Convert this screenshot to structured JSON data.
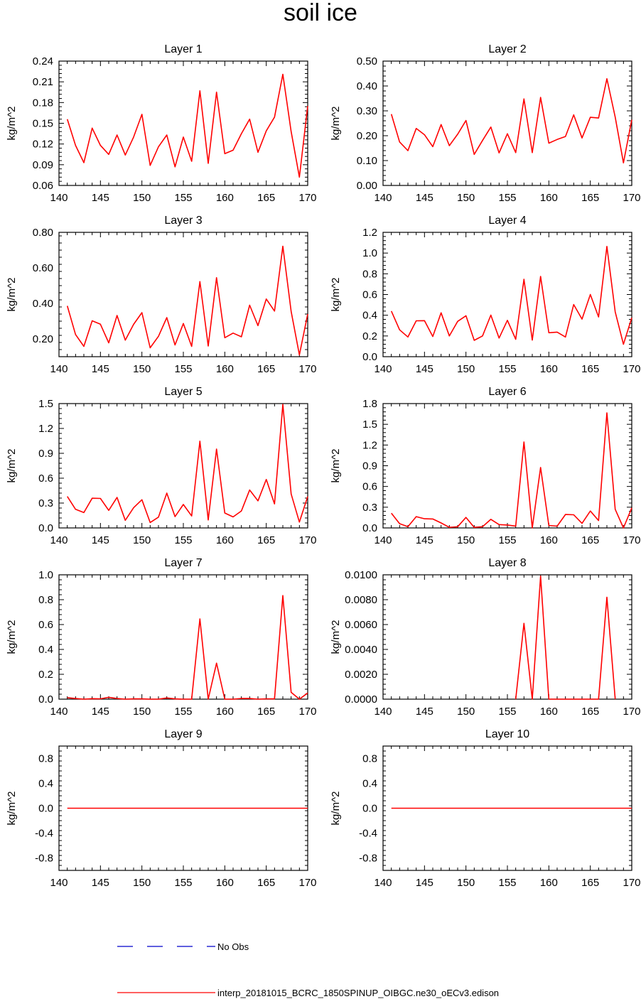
{
  "title": "soil ice",
  "legend": {
    "entries": [
      {
        "label": "No Obs",
        "color": "#0000cc",
        "style": "dashed"
      },
      {
        "label": "interp_20181015_BCRC_1850SPINUP_OIBGC.ne30_oECv3.edison",
        "color": "#ff0000",
        "style": "solid"
      }
    ]
  },
  "chart_data": [
    {
      "type": "line",
      "title": "Layer 1",
      "ylabel": "kg/m^2",
      "xlim": [
        140,
        170
      ],
      "ylim": [
        0.06,
        0.24
      ],
      "xticks": [
        140,
        145,
        150,
        155,
        160,
        165,
        170
      ],
      "yticks": [
        0.06,
        0.09,
        0.12,
        0.15,
        0.18,
        0.21,
        0.24
      ],
      "ytick_labels": [
        "0.06",
        "0.09",
        "0.12",
        "0.15",
        "0.18",
        "0.21",
        "0.24"
      ],
      "series": [
        {
          "color": "#ff0000",
          "x": [
            141,
            142,
            143,
            144,
            145,
            146,
            147,
            148,
            149,
            150,
            151,
            152,
            153,
            154,
            155,
            156,
            157,
            158,
            159,
            160,
            161,
            162,
            163,
            164,
            165,
            166,
            167,
            168,
            169,
            170
          ],
          "values": [
            0.156,
            0.118,
            0.093,
            0.143,
            0.118,
            0.105,
            0.133,
            0.104,
            0.13,
            0.163,
            0.089,
            0.116,
            0.133,
            0.087,
            0.13,
            0.095,
            0.197,
            0.092,
            0.195,
            0.106,
            0.111,
            0.135,
            0.156,
            0.108,
            0.139,
            0.159,
            0.221,
            0.138,
            0.072,
            0.175
          ]
        }
      ]
    },
    {
      "type": "line",
      "title": "Layer 2",
      "ylabel": "kg/m^2",
      "xlim": [
        140,
        170
      ],
      "ylim": [
        0,
        0.5
      ],
      "xticks": [
        140,
        145,
        150,
        155,
        160,
        165,
        170
      ],
      "yticks": [
        0,
        0.1,
        0.2,
        0.3,
        0.4,
        0.5
      ],
      "ytick_labels": [
        "0.00",
        "0.10",
        "0.20",
        "0.30",
        "0.40",
        "0.50"
      ],
      "series": [
        {
          "color": "#ff0000",
          "x": [
            141,
            142,
            143,
            144,
            145,
            146,
            147,
            148,
            149,
            150,
            151,
            152,
            153,
            154,
            155,
            156,
            157,
            158,
            159,
            160,
            161,
            162,
            163,
            164,
            165,
            166,
            167,
            168,
            169,
            170
          ],
          "values": [
            0.287,
            0.175,
            0.14,
            0.229,
            0.204,
            0.156,
            0.245,
            0.16,
            0.206,
            0.261,
            0.125,
            0.181,
            0.235,
            0.131,
            0.208,
            0.132,
            0.348,
            0.132,
            0.354,
            0.17,
            0.185,
            0.197,
            0.284,
            0.191,
            0.274,
            0.271,
            0.429,
            0.275,
            0.091,
            0.264
          ]
        }
      ]
    },
    {
      "type": "line",
      "title": "Layer 3",
      "ylabel": "kg/m^2",
      "xlim": [
        140,
        170
      ],
      "ylim": [
        0.1,
        0.8
      ],
      "xticks": [
        140,
        145,
        150,
        155,
        160,
        165,
        170
      ],
      "yticks": [
        0.2,
        0.4,
        0.6,
        0.8
      ],
      "ytick_labels": [
        "0.20",
        "0.40",
        "0.60",
        "0.80"
      ],
      "series": [
        {
          "color": "#ff0000",
          "x": [
            141,
            142,
            143,
            144,
            145,
            146,
            147,
            148,
            149,
            150,
            151,
            152,
            153,
            154,
            155,
            156,
            157,
            158,
            159,
            160,
            161,
            162,
            163,
            164,
            165,
            166,
            167,
            168,
            169,
            170
          ],
          "values": [
            0.386,
            0.225,
            0.158,
            0.302,
            0.283,
            0.178,
            0.332,
            0.193,
            0.282,
            0.348,
            0.15,
            0.215,
            0.32,
            0.166,
            0.287,
            0.158,
            0.523,
            0.16,
            0.545,
            0.207,
            0.233,
            0.212,
            0.39,
            0.275,
            0.425,
            0.357,
            0.722,
            0.355,
            0.11,
            0.34
          ]
        }
      ]
    },
    {
      "type": "line",
      "title": "Layer 4",
      "ylabel": "kg/m^2",
      "xlim": [
        140,
        170
      ],
      "ylim": [
        0,
        1.2
      ],
      "xticks": [
        140,
        145,
        150,
        155,
        160,
        165,
        170
      ],
      "yticks": [
        0,
        0.2,
        0.4,
        0.6,
        0.8,
        1.0,
        1.2
      ],
      "ytick_labels": [
        "0.0",
        "0.2",
        "0.4",
        "0.6",
        "0.8",
        "1.0",
        "1.2"
      ],
      "series": [
        {
          "color": "#ff0000",
          "x": [
            141,
            142,
            143,
            144,
            145,
            146,
            147,
            148,
            149,
            150,
            151,
            152,
            153,
            154,
            155,
            156,
            157,
            158,
            159,
            160,
            161,
            162,
            163,
            164,
            165,
            166,
            167,
            168,
            169,
            170
          ],
          "values": [
            0.44,
            0.259,
            0.19,
            0.346,
            0.348,
            0.195,
            0.424,
            0.2,
            0.341,
            0.395,
            0.158,
            0.2,
            0.401,
            0.18,
            0.351,
            0.168,
            0.747,
            0.16,
            0.775,
            0.231,
            0.237,
            0.19,
            0.503,
            0.363,
            0.6,
            0.383,
            1.064,
            0.433,
            0.12,
            0.376
          ]
        }
      ]
    },
    {
      "type": "line",
      "title": "Layer 5",
      "ylabel": "kg/m^2",
      "xlim": [
        140,
        170
      ],
      "ylim": [
        0,
        1.5
      ],
      "xticks": [
        140,
        145,
        150,
        155,
        160,
        165,
        170
      ],
      "yticks": [
        0,
        0.3,
        0.6,
        0.9,
        1.2,
        1.5
      ],
      "ytick_labels": [
        "0.0",
        "0.3",
        "0.6",
        "0.9",
        "1.2",
        "1.5"
      ],
      "series": [
        {
          "color": "#ff0000",
          "x": [
            141,
            142,
            143,
            144,
            145,
            146,
            147,
            148,
            149,
            150,
            151,
            152,
            153,
            154,
            155,
            156,
            157,
            158,
            159,
            160,
            161,
            162,
            163,
            164,
            165,
            166,
            167,
            168,
            169,
            170
          ],
          "values": [
            0.38,
            0.225,
            0.185,
            0.358,
            0.356,
            0.212,
            0.368,
            0.092,
            0.243,
            0.34,
            0.065,
            0.13,
            0.42,
            0.136,
            0.283,
            0.144,
            1.047,
            0.096,
            0.951,
            0.18,
            0.133,
            0.205,
            0.458,
            0.327,
            0.585,
            0.29,
            1.49,
            0.41,
            0.07,
            0.38
          ]
        }
      ]
    },
    {
      "type": "line",
      "title": "Layer 6",
      "ylabel": "kg/m^2",
      "xlim": [
        140,
        170
      ],
      "ylim": [
        0,
        1.8
      ],
      "xticks": [
        140,
        145,
        150,
        155,
        160,
        165,
        170
      ],
      "yticks": [
        0,
        0.3,
        0.6,
        0.9,
        1.2,
        1.5,
        1.8
      ],
      "ytick_labels": [
        "0.0",
        "0.3",
        "0.6",
        "0.9",
        "1.2",
        "1.5",
        "1.8"
      ],
      "series": [
        {
          "color": "#ff0000",
          "x": [
            141,
            142,
            143,
            144,
            145,
            146,
            147,
            148,
            149,
            150,
            151,
            152,
            153,
            154,
            155,
            156,
            157,
            158,
            159,
            160,
            161,
            162,
            163,
            164,
            165,
            166,
            167,
            168,
            169,
            170
          ],
          "values": [
            0.214,
            0.062,
            0.018,
            0.164,
            0.133,
            0.13,
            0.072,
            0.008,
            0.018,
            0.152,
            0.008,
            0.018,
            0.124,
            0.048,
            0.042,
            0.027,
            1.245,
            0.0,
            0.875,
            0.036,
            0.026,
            0.194,
            0.19,
            0.066,
            0.245,
            0.107,
            1.665,
            0.27,
            0.0,
            0.29
          ]
        }
      ]
    },
    {
      "type": "line",
      "title": "Layer 7",
      "ylabel": "kg/m^2",
      "xlim": [
        140,
        170
      ],
      "ylim": [
        0,
        1.0
      ],
      "xticks": [
        140,
        145,
        150,
        155,
        160,
        165,
        170
      ],
      "yticks": [
        0,
        0.2,
        0.4,
        0.6,
        0.8,
        1.0
      ],
      "ytick_labels": [
        "0.0",
        "0.2",
        "0.4",
        "0.6",
        "0.8",
        "1.0"
      ],
      "series": [
        {
          "color": "#ff0000",
          "x": [
            141,
            142,
            143,
            144,
            145,
            146,
            147,
            148,
            149,
            150,
            151,
            152,
            153,
            154,
            155,
            156,
            157,
            158,
            159,
            160,
            161,
            162,
            163,
            164,
            165,
            166,
            167,
            168,
            169,
            170
          ],
          "values": [
            0.012,
            0.005,
            0.0,
            0.004,
            0.003,
            0.015,
            0.005,
            0.0,
            0.002,
            0.002,
            0.0,
            0.0,
            0.01,
            0.002,
            0.0,
            0.0,
            0.645,
            0.0,
            0.29,
            0.0,
            0.0,
            0.006,
            0.005,
            0.0,
            0.003,
            0.002,
            0.833,
            0.055,
            0.0,
            0.05
          ]
        }
      ]
    },
    {
      "type": "line",
      "title": "Layer 8",
      "ylabel": "kg/m^2",
      "xlim": [
        140,
        170
      ],
      "ylim": [
        0,
        0.01
      ],
      "xticks": [
        140,
        145,
        150,
        155,
        160,
        165,
        170
      ],
      "yticks": [
        0,
        0.002,
        0.004,
        0.006,
        0.008,
        0.01
      ],
      "ytick_labels": [
        "0.0000",
        "0.0020",
        "0.0040",
        "0.0060",
        "0.0080",
        "0.0100"
      ],
      "series": [
        {
          "color": "#ff0000",
          "x": [
            156,
            157,
            158,
            159,
            160,
            166,
            167,
            168
          ],
          "values": [
            0.0,
            0.0061,
            0.0,
            0.0099,
            0.0,
            0.0,
            0.0082,
            0.0
          ]
        }
      ]
    },
    {
      "type": "line",
      "title": "Layer 9",
      "ylabel": "kg/m^2",
      "xlim": [
        140,
        170
      ],
      "ylim": [
        -1.0,
        1.0
      ],
      "xticks": [
        140,
        145,
        150,
        155,
        160,
        165,
        170
      ],
      "yticks": [
        -0.8,
        -0.4,
        0,
        0.4,
        0.8
      ],
      "ytick_labels": [
        "-0.8",
        "-0.4",
        "0.0",
        "0.4",
        "0.8"
      ],
      "series": [
        {
          "color": "#ff0000",
          "x": [
            141,
            170
          ],
          "values": [
            0.0,
            0.0
          ]
        }
      ]
    },
    {
      "type": "line",
      "title": "Layer 10",
      "ylabel": "kg/m^2",
      "xlim": [
        140,
        170
      ],
      "ylim": [
        -1.0,
        1.0
      ],
      "xticks": [
        140,
        145,
        150,
        155,
        160,
        165,
        170
      ],
      "yticks": [
        -0.8,
        -0.4,
        0,
        0.4,
        0.8
      ],
      "ytick_labels": [
        "-0.8",
        "-0.4",
        "0.0",
        "0.4",
        "0.8"
      ],
      "series": [
        {
          "color": "#ff0000",
          "x": [
            141,
            170
          ],
          "values": [
            0.0,
            0.0
          ]
        }
      ]
    }
  ]
}
